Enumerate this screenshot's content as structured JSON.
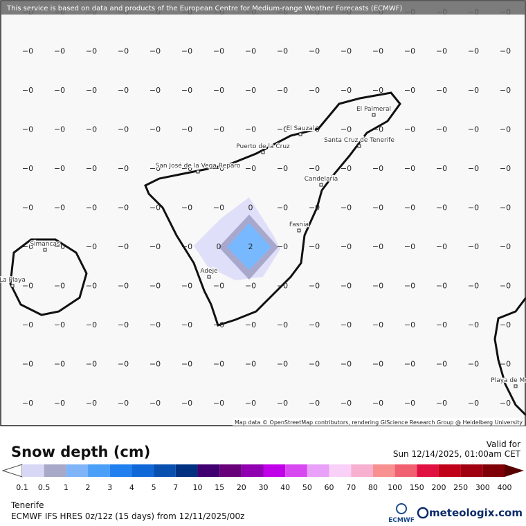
{
  "banner": "This service is based on data and products of the European Centre for Medium-range Weather Forecasts (ECMWF)",
  "attribution": "Map data © OpenStreetMap contributors, rendering GIScience Research Group @ Heidelberg University",
  "grid": [
    [
      "−0",
      "−0",
      "−0",
      "−0",
      "−0",
      "−0",
      "−0",
      "−0",
      "−0",
      "−0",
      "−0",
      "−0",
      "−0",
      "−0",
      "−0",
      "−0"
    ],
    [
      "−0",
      "−0",
      "−0",
      "−0",
      "−0",
      "−0",
      "−0",
      "−0",
      "−0",
      "−0",
      "−0",
      "−0",
      "−0",
      "−0",
      "−0",
      "−0"
    ],
    [
      "−0",
      "−0",
      "−0",
      "−0",
      "−0",
      "−0",
      "−0",
      "−0",
      "−0",
      "−0",
      "−0",
      "−0",
      "−0",
      "−0",
      "−0",
      "−0"
    ],
    [
      "−0",
      "−0",
      "−0",
      "−0",
      "−0",
      "−0",
      "−0",
      "−0",
      "−0",
      "−0",
      "−0",
      "−0",
      "−0",
      "−0",
      "−0",
      "−0"
    ],
    [
      "−0",
      "−0",
      "−0",
      "−0",
      "−0",
      "−0",
      "−0",
      "−0",
      "−0",
      "−0",
      "−0",
      "−0",
      "−0",
      "−0",
      "−0",
      "−0"
    ],
    [
      "−0",
      "−0",
      "−0",
      "−0",
      "−0",
      "−0",
      "−0",
      "0",
      "−0",
      "−0",
      "−0",
      "−0",
      "−0",
      "−0",
      "−0",
      "−0"
    ],
    [
      "−0",
      "−0",
      "−0",
      "−0",
      "−0",
      "−0",
      "0",
      "2",
      "−0",
      "−0",
      "−0",
      "−0",
      "−0",
      "−0",
      "−0",
      "−0"
    ],
    [
      "−0",
      "−0",
      "−0",
      "−0",
      "−0",
      "−0",
      "−0",
      "−0",
      "−0",
      "−0",
      "−0",
      "−0",
      "−0",
      "−0",
      "−0",
      "−0"
    ],
    [
      "−0",
      "−0",
      "−0",
      "−0",
      "−0",
      "−0",
      "−0",
      "−0",
      "−0",
      "−0",
      "−0",
      "−0",
      "−0",
      "−0",
      "−0",
      "−0"
    ],
    [
      "−0",
      "−0",
      "−0",
      "−0",
      "−0",
      "−0",
      "−0",
      "−0",
      "−0",
      "−0",
      "−0",
      "−0",
      "−0",
      "−0",
      "−0",
      "−0"
    ],
    [
      "−0",
      "−0",
      "−0",
      "−0",
      "−0",
      "−0",
      "−0",
      "−0",
      "−0",
      "−0",
      "−0",
      "−0",
      "−0",
      "−0",
      "−0",
      "−0"
    ]
  ],
  "places": [
    "Simancas",
    "La Playa",
    "Adeje",
    "San José de la Vega Reparo",
    "Puerto de la Cruz",
    "El Sauzal",
    "El Palmeral",
    "Santa Cruz de Tenerife",
    "Candelaria",
    "Fasnia",
    "Playa de Mogán"
  ],
  "legend": {
    "title": "Snow depth (cm)",
    "valid_label": "Valid for",
    "valid_time": "Sun 12/14/2025, 01:00am CET",
    "ticks": [
      "0.1",
      "0.5",
      "1",
      "2",
      "3",
      "4",
      "5",
      "7",
      "10",
      "15",
      "20",
      "30",
      "40",
      "50",
      "60",
      "70",
      "80",
      "100",
      "150",
      "200",
      "250",
      "300",
      "400"
    ],
    "colors": [
      "#d8d8f6",
      "#a8a8c8",
      "#80b4f8",
      "#4aa0f8",
      "#2080f0",
      "#1068d8",
      "#0850b0",
      "#003080",
      "#400070",
      "#68007a",
      "#9000b0",
      "#c000e8",
      "#d848f0",
      "#e8a0f8",
      "#f8d0f8",
      "#f8b0d0",
      "#f89090",
      "#f06070",
      "#e01040",
      "#c00018",
      "#a00010",
      "#800008"
    ]
  },
  "footer": {
    "region": "Tenerife",
    "model": "ECMWF IFS HRES 0z/12z (15 days) from 12/11/2025/00z",
    "ecmwf": "ECMWF",
    "brand": "meteologix.com"
  }
}
